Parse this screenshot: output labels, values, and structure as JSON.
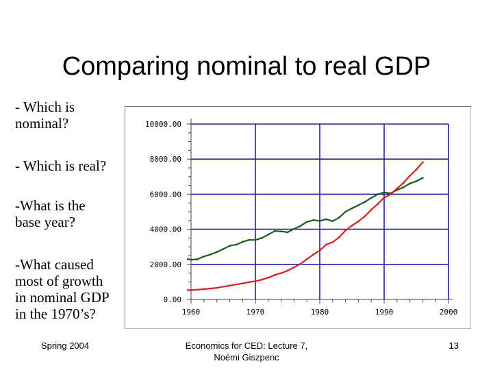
{
  "slide": {
    "title": "Comparing nominal to real GDP",
    "questions": [
      [
        "- Which is",
        "nominal?"
      ],
      [
        "- Which is real?"
      ],
      [
        "-What is the",
        "base year?"
      ],
      [
        "-What caused",
        "most of growth",
        "in nominal GDP",
        "in the 1970’s?"
      ]
    ]
  },
  "footer": {
    "left": "Spring 2004",
    "center_line1": "Economics for CED: Lecture 7,",
    "center_line2": "Noémi Giszpenc",
    "right": "13"
  },
  "chart_data": {
    "type": "line",
    "title": "",
    "xlabel": "",
    "ylabel": "",
    "xlim": [
      1960,
      2000
    ],
    "ylim": [
      0,
      10000
    ],
    "x_ticks": [
      1960,
      1970,
      1980,
      1990,
      2000
    ],
    "x_tick_labels": [
      "1960",
      "1970",
      "1980",
      "1990",
      "2000"
    ],
    "y_ticks": [
      0,
      2000,
      4000,
      6000,
      8000,
      10000
    ],
    "y_tick_labels": [
      "0.00",
      "2000.00",
      "4000.00",
      "6000.00",
      "8000.00",
      "10000.00"
    ],
    "grid": true,
    "colors": {
      "series_green": "#1a5a22",
      "series_red": "#d42020",
      "grid": "#2020a8"
    },
    "series": [
      {
        "name": "",
        "color": "#1a5a22",
        "x": [
          1959.5,
          1960,
          1961,
          1962,
          1963,
          1964,
          1965,
          1966,
          1967,
          1968,
          1969,
          1970,
          1971,
          1972,
          1973,
          1974,
          1975,
          1976,
          1977,
          1978,
          1979,
          1980,
          1981,
          1982,
          1983,
          1984,
          1985,
          1986,
          1987,
          1988,
          1989,
          1990,
          1991,
          1992,
          1993,
          1994,
          1995,
          1996
        ],
        "y": [
          2300,
          2260,
          2290,
          2450,
          2560,
          2700,
          2870,
          3060,
          3120,
          3280,
          3390,
          3390,
          3500,
          3700,
          3900,
          3880,
          3830,
          4020,
          4190,
          4420,
          4520,
          4480,
          4570,
          4460,
          4660,
          5000,
          5190,
          5370,
          5560,
          5790,
          5990,
          6100,
          6050,
          6240,
          6390,
          6610,
          6740,
          6930
        ]
      },
      {
        "name": "",
        "color": "#d42020",
        "x": [
          1959.5,
          1960,
          1962,
          1964,
          1966,
          1968,
          1969,
          1970,
          1971,
          1972,
          1973,
          1974,
          1975,
          1976,
          1977,
          1978,
          1979,
          1980,
          1981,
          1982,
          1983,
          1984,
          1985,
          1986,
          1987,
          1988,
          1989,
          1990,
          1991,
          1992,
          1993,
          1994,
          1995,
          1996
        ],
        "y": [
          530,
          526,
          585,
          660,
          790,
          910,
          985,
          1040,
          1130,
          1240,
          1390,
          1500,
          1640,
          1830,
          2030,
          2290,
          2560,
          2790,
          3130,
          3260,
          3540,
          3930,
          4210,
          4450,
          4740,
          5110,
          5440,
          5800,
          5990,
          6320,
          6640,
          7050,
          7400,
          7820
        ]
      }
    ]
  }
}
